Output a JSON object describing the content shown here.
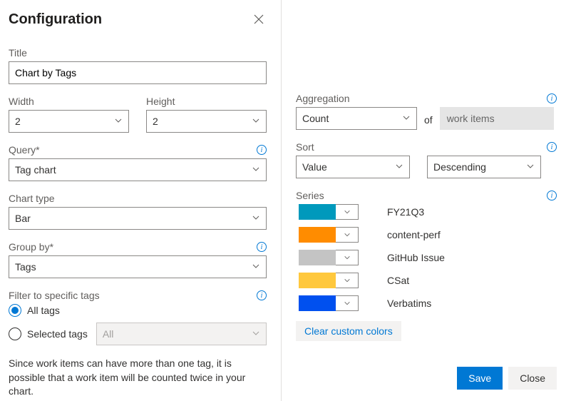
{
  "header": {
    "title": "Configuration"
  },
  "title_field": {
    "label": "Title",
    "value": "Chart by Tags"
  },
  "width_field": {
    "label": "Width",
    "value": "2"
  },
  "height_field": {
    "label": "Height",
    "value": "2"
  },
  "query_field": {
    "label": "Query*",
    "value": "Tag chart"
  },
  "chart_type_field": {
    "label": "Chart type",
    "value": "Bar"
  },
  "group_by_field": {
    "label": "Group by*",
    "value": "Tags"
  },
  "filter_section": {
    "label": "Filter to specific tags",
    "option_all": "All tags",
    "option_selected": "Selected tags",
    "selected_dropdown": "All",
    "selected_radio": "all"
  },
  "helper_text": "Since work items can have more than one tag, it is possible that a work item will be counted twice in your chart.",
  "aggregation": {
    "label": "Aggregation",
    "value": "Count",
    "of_label": "of",
    "of_value": "work items"
  },
  "sort": {
    "label": "Sort",
    "by_value": "Value",
    "dir_value": "Descending"
  },
  "series": {
    "label": "Series",
    "items": [
      {
        "label": "FY21Q3",
        "color": "#0099bc"
      },
      {
        "label": "content-perf",
        "color": "#ff8c00"
      },
      {
        "label": "GitHub Issue",
        "color": "#c4c4c4"
      },
      {
        "label": "CSat",
        "color": "#ffc83d"
      },
      {
        "label": "Verbatims",
        "color": "#0050ef"
      }
    ],
    "clear_label": "Clear custom colors"
  },
  "buttons": {
    "save": "Save",
    "close": "Close"
  },
  "colors": {
    "primary": "#0078d4",
    "border": "#8a8886",
    "disabled_bg": "#f3f2f1"
  }
}
